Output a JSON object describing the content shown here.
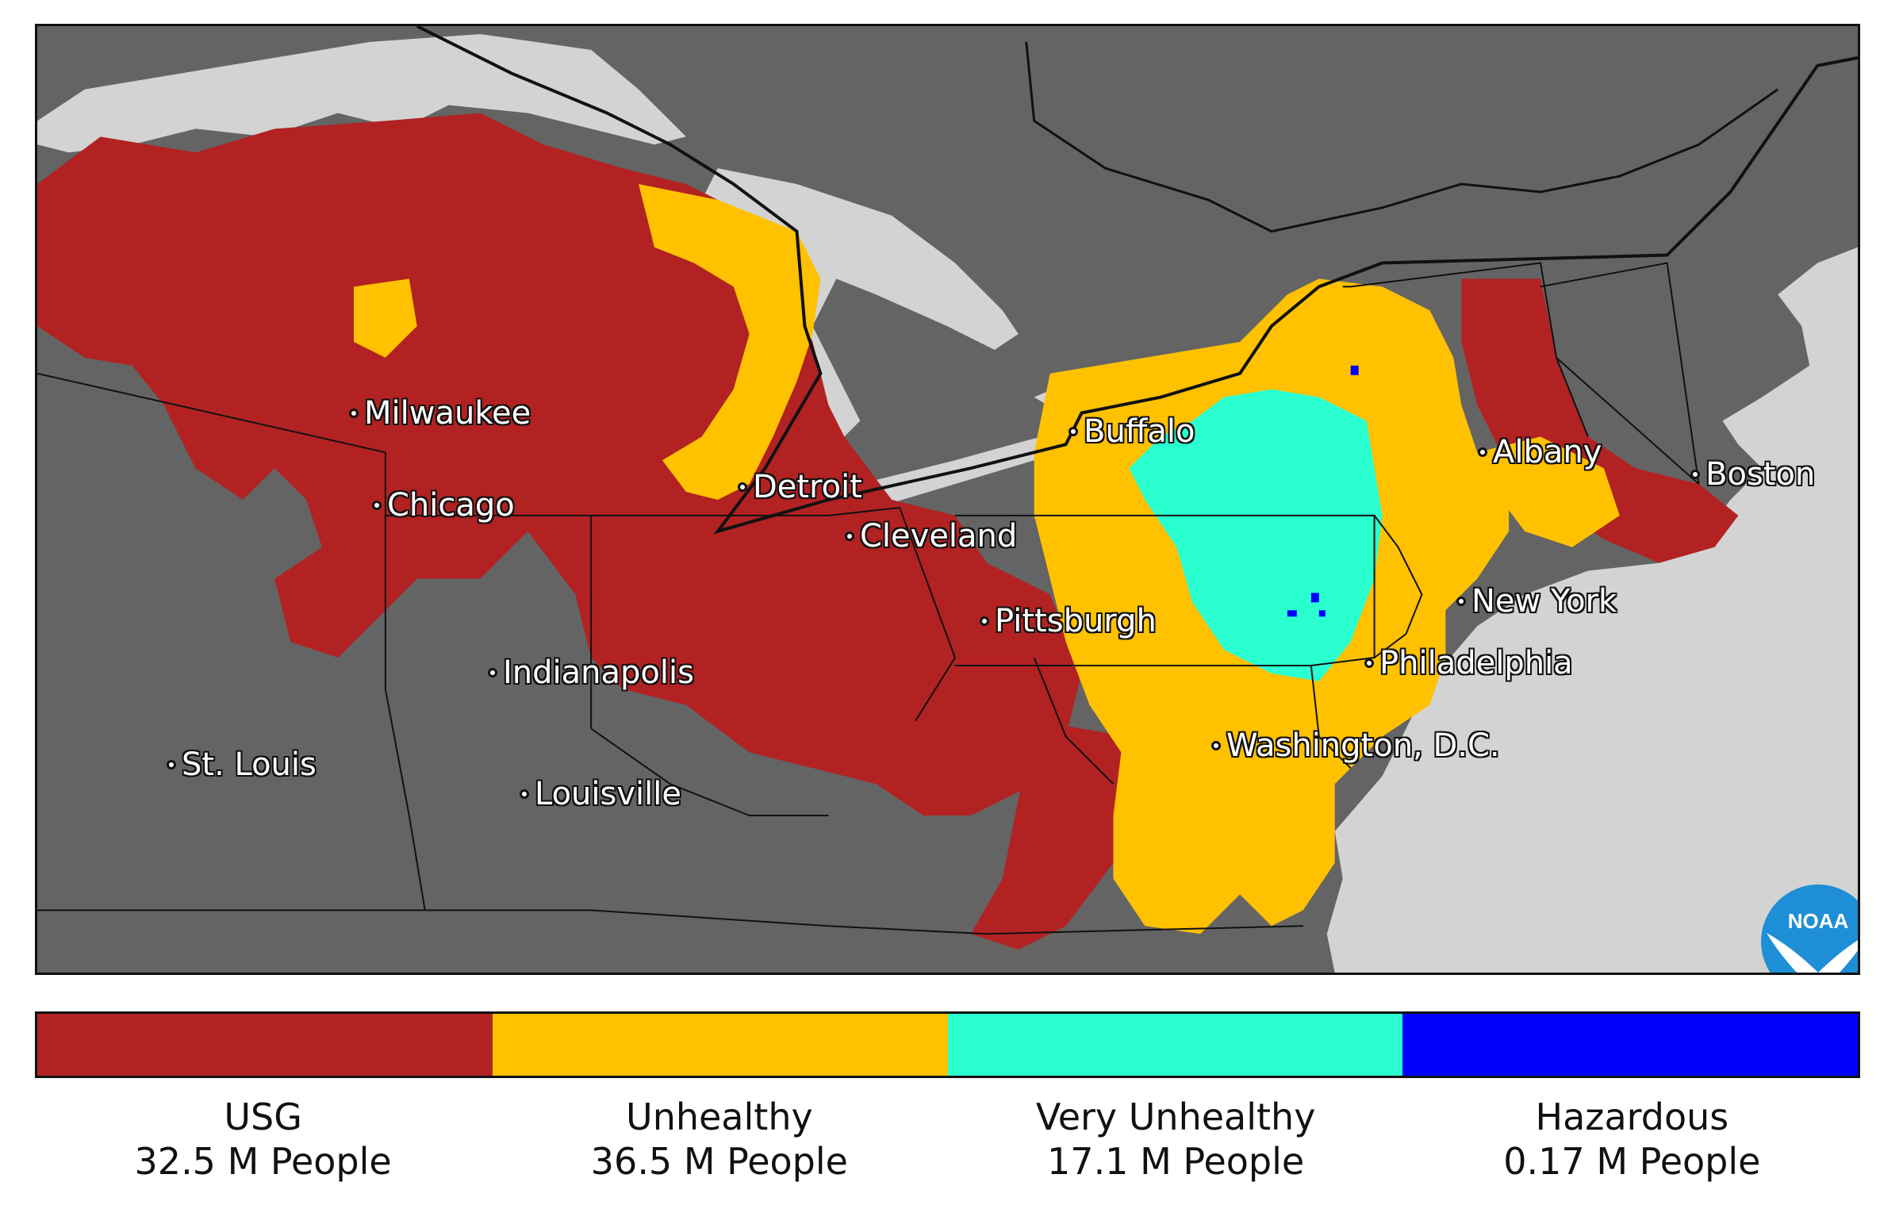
{
  "map": {
    "colors": {
      "land": "#646464",
      "water": "#d3d3d3",
      "usg": "#b22222",
      "unhealthy": "#ffc100",
      "very_unhealthy": "#2affd0",
      "hazardous": "#0000ff"
    },
    "cities": [
      {
        "id": "milwaukee",
        "label": "Milwaukee"
      },
      {
        "id": "chicago",
        "label": "Chicago"
      },
      {
        "id": "detroit",
        "label": "Detroit"
      },
      {
        "id": "buffalo",
        "label": "Buffalo"
      },
      {
        "id": "cleveland",
        "label": "Cleveland"
      },
      {
        "id": "pittsburgh",
        "label": "Pittsburgh"
      },
      {
        "id": "indianapolis",
        "label": "Indianapolis"
      },
      {
        "id": "st-louis",
        "label": "St. Louis"
      },
      {
        "id": "louisville",
        "label": "Louisville"
      },
      {
        "id": "albany",
        "label": "Albany"
      },
      {
        "id": "boston",
        "label": "Boston"
      },
      {
        "id": "new-york",
        "label": "New York"
      },
      {
        "id": "philadelphia",
        "label": "Philadelphia"
      },
      {
        "id": "washington-dc",
        "label": "Washington, D.C."
      }
    ],
    "logo": {
      "text": "NOAA",
      "icon": "noaa-logo"
    }
  },
  "legend": [
    {
      "category": "USG",
      "population": "32.5 M People",
      "color": "#b22222"
    },
    {
      "category": "Unhealthy",
      "population": "36.5 M People",
      "color": "#ffc100"
    },
    {
      "category": "Very Unhealthy",
      "population": "17.1 M People",
      "color": "#2affd0"
    },
    {
      "category": "Hazardous",
      "population": "0.17 M People",
      "color": "#0000ff"
    }
  ]
}
